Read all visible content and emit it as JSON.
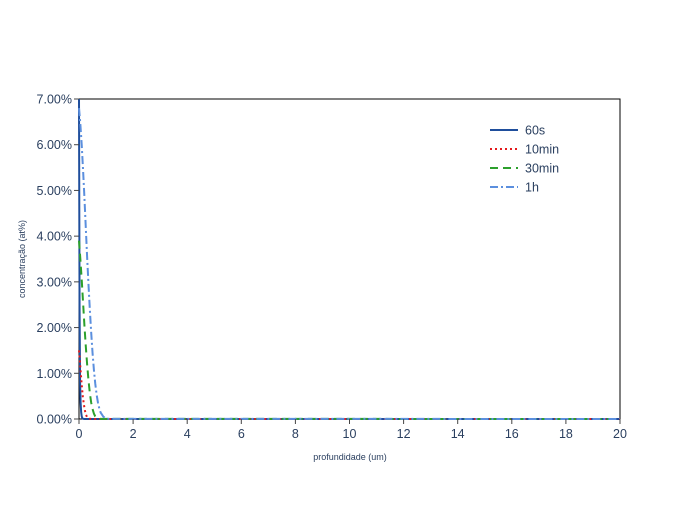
{
  "chart_data": {
    "type": "line",
    "title": "",
    "xlabel": "profundidade (um)",
    "ylabel": "concentração (at%)",
    "xlim": [
      0,
      20
    ],
    "ylim": [
      0,
      7
    ],
    "x_ticks": [
      0,
      2,
      4,
      6,
      8,
      10,
      12,
      14,
      16,
      18,
      20
    ],
    "y_ticks": [
      0,
      1,
      2,
      3,
      4,
      5,
      6,
      7
    ],
    "y_tick_format": "percent_2dp",
    "grid": false,
    "legend_position": "top-right",
    "series": [
      {
        "name": "60s",
        "color": "#1f4e9c",
        "dash": "solid",
        "x": [
          0,
          0.02,
          0.04,
          0.06,
          0.08,
          0.1,
          0.12,
          0.15,
          0.2,
          0.3,
          20
        ],
        "y": [
          7.0,
          2.5,
          0.8,
          0.35,
          0.15,
          0.06,
          0.02,
          0.005,
          0,
          0,
          0
        ]
      },
      {
        "name": "10min",
        "color": "#e31a1c",
        "dash": "dot",
        "x": [
          0,
          0.03,
          0.06,
          0.1,
          0.14,
          0.18,
          0.22,
          0.26,
          0.3,
          0.35,
          0.4,
          0.5,
          20
        ],
        "y": [
          1.5,
          1.3,
          1.05,
          0.75,
          0.5,
          0.32,
          0.18,
          0.09,
          0.04,
          0.015,
          0.005,
          0,
          0
        ]
      },
      {
        "name": "30min",
        "color": "#2ca02c",
        "dash": "dash",
        "x": [
          0,
          0.05,
          0.1,
          0.15,
          0.2,
          0.25,
          0.3,
          0.35,
          0.4,
          0.45,
          0.5,
          0.55,
          0.6,
          0.7,
          0.8,
          20
        ],
        "y": [
          3.9,
          3.5,
          3.05,
          2.55,
          2.05,
          1.6,
          1.2,
          0.85,
          0.57,
          0.36,
          0.22,
          0.12,
          0.06,
          0.015,
          0.003,
          0
        ]
      },
      {
        "name": "1h",
        "color": "#5b8fde",
        "dash": "dashdot",
        "x": [
          0,
          0.05,
          0.1,
          0.15,
          0.2,
          0.25,
          0.3,
          0.35,
          0.4,
          0.45,
          0.5,
          0.55,
          0.6,
          0.65,
          0.7,
          0.75,
          0.8,
          0.9,
          1.0,
          1.1,
          20
        ],
        "y": [
          6.8,
          6.45,
          6.0,
          5.45,
          4.85,
          4.2,
          3.55,
          2.95,
          2.4,
          1.9,
          1.45,
          1.08,
          0.78,
          0.54,
          0.36,
          0.23,
          0.14,
          0.05,
          0.015,
          0.004,
          0
        ]
      }
    ]
  }
}
